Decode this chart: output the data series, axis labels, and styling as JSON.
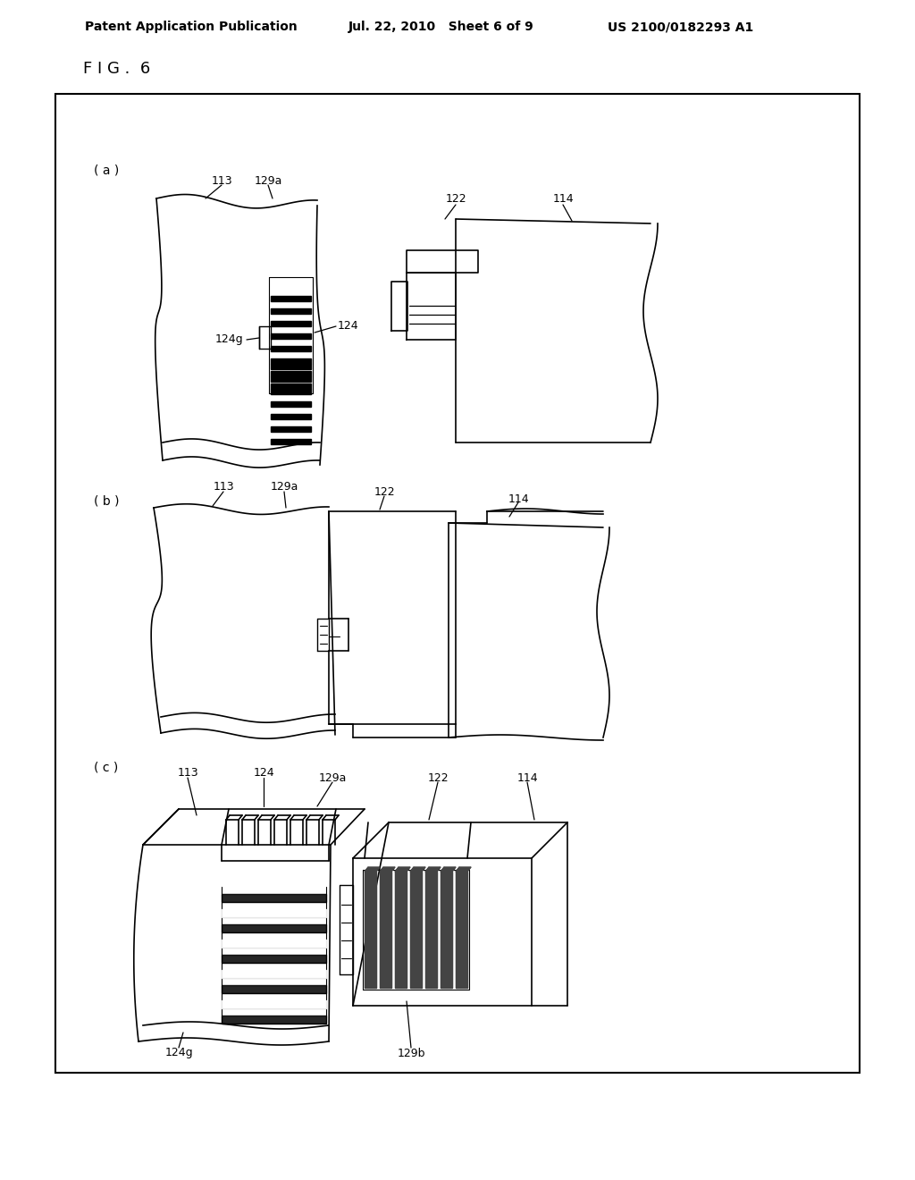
{
  "header_left": "Patent Application Publication",
  "header_mid": "Jul. 22, 2010   Sheet 6 of 9",
  "header_right": "US 2100/0182293 A1",
  "fig_label": "F I G .  6",
  "bg_color": "#ffffff"
}
